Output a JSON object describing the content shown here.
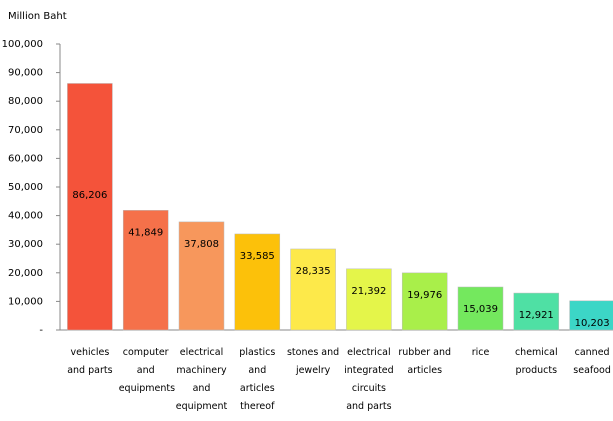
{
  "chart_data": {
    "type": "bar",
    "y_label": "Million Baht",
    "categories": [
      "vehicles and parts",
      "computer and equipments",
      "electrical machinery and equipment",
      "plastics and articles thereof",
      "stones and jewelry",
      "electrical integrated circuits and parts",
      "rubber and articles",
      "rice",
      "chemical products",
      "canned seafood"
    ],
    "values": [
      86206,
      41849,
      37808,
      33585,
      28335,
      21392,
      19976,
      15039,
      12921,
      10203
    ],
    "value_labels": [
      "86,206",
      "41,849",
      "37,808",
      "33,585",
      "28,335",
      "21,392",
      "19,976",
      "15,039",
      "12,921",
      "10,203"
    ],
    "colors": [
      "#f4533a",
      "#f5714a",
      "#f7975c",
      "#fcc10a",
      "#fde94a",
      "#e4f54a",
      "#a9ef4a",
      "#74e85e",
      "#4fe0a4",
      "#3cd6c6"
    ],
    "ylim": [
      0,
      100000
    ],
    "yticks": [
      {
        "value": 0,
        "label": "-"
      },
      {
        "value": 10000,
        "label": "10,000"
      },
      {
        "value": 20000,
        "label": "20,000"
      },
      {
        "value": 30000,
        "label": "30,000"
      },
      {
        "value": 40000,
        "label": "40,000"
      },
      {
        "value": 50000,
        "label": "50,000"
      },
      {
        "value": 60000,
        "label": "60,000"
      },
      {
        "value": 70000,
        "label": "70,000"
      },
      {
        "value": 80000,
        "label": "80,000"
      },
      {
        "value": 90000,
        "label": "90,000"
      },
      {
        "value": 100000,
        "label": "100,000"
      }
    ]
  }
}
